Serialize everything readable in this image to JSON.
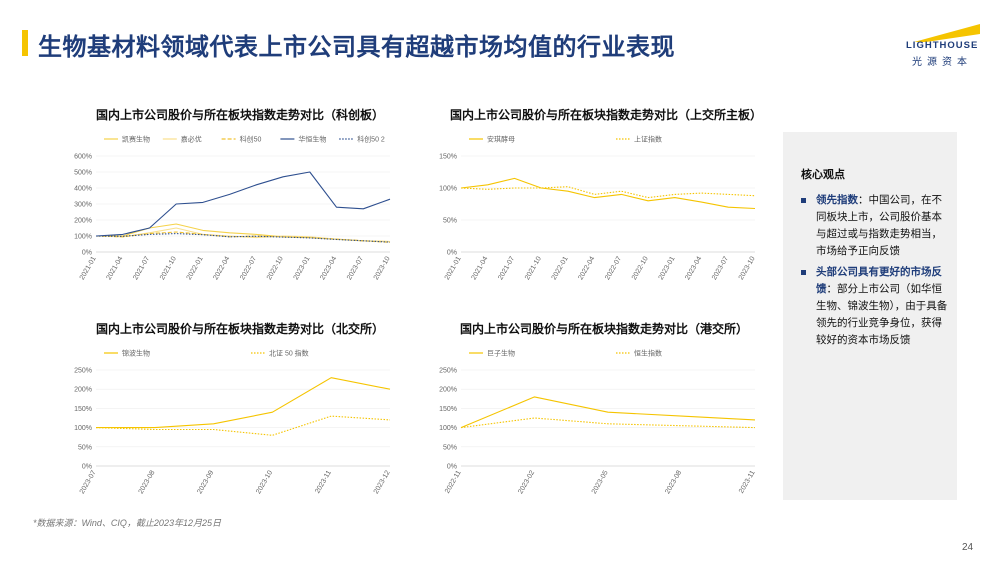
{
  "page": {
    "title": "生物基材料领域代表上市公司具有超越市场均值的行业表现",
    "logo_en": "LIGHTHOUSE",
    "logo_cn": "光源资本",
    "source": "*数据来源：Wind、CIQ，截止2023年12月25日",
    "page_number": "24",
    "accent": "#f5c400",
    "brand": "#1f3d7a"
  },
  "panel": {
    "title": "核心观点",
    "bullets": [
      {
        "highlight": "领先指数",
        "text": "：中国公司，在不同板块上市，公司股价基本与超过或与指数走势相当，市场给予正向反馈"
      },
      {
        "highlight": "头部公司具有更好的市场反馈",
        "text": "：部分上市公司（如华恒生物、锦波生物），由于具备领先的行业竞争身位，获得较好的资本市场反馈"
      }
    ]
  },
  "chart_data": [
    {
      "type": "line",
      "title": "国内上市公司股价与所在板块指数走势对比（科创板）",
      "x": [
        "2021-01",
        "2021-04",
        "2021-07",
        "2021-10",
        "2022-01",
        "2022-04",
        "2022-07",
        "2022-10",
        "2023-01",
        "2023-04",
        "2023-07",
        "2023-10"
      ],
      "ylim": [
        0,
        600
      ],
      "yticks": [
        "0%",
        "100%",
        "200%",
        "300%",
        "400%",
        "500%",
        "600%"
      ],
      "legend": "top",
      "series": [
        {
          "name": "凯赛生物",
          "color": "#f5d24a",
          "style": "solid",
          "values": [
            100,
            100,
            150,
            175,
            135,
            120,
            110,
            95,
            90,
            80,
            70,
            65
          ]
        },
        {
          "name": "嘉必优",
          "color": "#f9e08c",
          "style": "solid",
          "values": [
            100,
            95,
            120,
            150,
            110,
            100,
            90,
            100,
            95,
            80,
            70,
            65
          ]
        },
        {
          "name": "科创50",
          "color": "#f1c232",
          "style": "dashed",
          "values": [
            100,
            95,
            115,
            125,
            110,
            95,
            100,
            95,
            90,
            80,
            70,
            60
          ]
        },
        {
          "name": "华恒生物",
          "color": "#2e4f8f",
          "style": "solid",
          "values": [
            100,
            110,
            150,
            300,
            310,
            360,
            420,
            470,
            500,
            280,
            270,
            330
          ]
        },
        {
          "name": "科创50 2",
          "color": "#2e4f8f",
          "style": "dotted",
          "values": [
            100,
            98,
            110,
            115,
            108,
            95,
            98,
            93,
            88,
            78,
            70,
            62
          ]
        }
      ]
    },
    {
      "type": "line",
      "title": "国内上市公司股价与所在板块指数走势对比（上交所主板）",
      "x": [
        "2021-01",
        "2021-04",
        "2021-07",
        "2021-10",
        "2022-01",
        "2022-04",
        "2022-07",
        "2022-10",
        "2023-01",
        "2023-04",
        "2023-07",
        "2023-10"
      ],
      "ylim": [
        0,
        150
      ],
      "yticks": [
        "0%",
        "50%",
        "100%",
        "150%"
      ],
      "legend": "top",
      "series": [
        {
          "name": "安琪酵母",
          "color": "#f5c400",
          "style": "solid",
          "values": [
            100,
            105,
            115,
            100,
            95,
            85,
            90,
            80,
            85,
            78,
            70,
            68
          ]
        },
        {
          "name": "上证指数",
          "color": "#f5c400",
          "style": "dotted",
          "values": [
            100,
            98,
            100,
            100,
            102,
            90,
            95,
            85,
            90,
            92,
            90,
            88
          ]
        }
      ]
    },
    {
      "type": "line",
      "title": "国内上市公司股价与所在板块指数走势对比（北交所）",
      "x": [
        "2023-07",
        "2023-08",
        "2023-09",
        "2023-10",
        "2023-11",
        "2023-12"
      ],
      "ylim": [
        0,
        250
      ],
      "yticks": [
        "0%",
        "50%",
        "100%",
        "150%",
        "200%",
        "250%"
      ],
      "legend": "top",
      "series": [
        {
          "name": "锦波生物",
          "color": "#f5c400",
          "style": "solid",
          "values": [
            100,
            100,
            110,
            140,
            230,
            200
          ]
        },
        {
          "name": "北证 50 指数",
          "color": "#f5c400",
          "style": "dotted",
          "values": [
            100,
            95,
            95,
            80,
            130,
            120
          ]
        }
      ]
    },
    {
      "type": "line",
      "title": "国内上市公司股价与所在板块指数走势对比（港交所）",
      "x": [
        "2022-11",
        "2023-02",
        "2023-05",
        "2023-08",
        "2023-11"
      ],
      "ylim": [
        0,
        250
      ],
      "yticks": [
        "0%",
        "50%",
        "100%",
        "150%",
        "200%",
        "250%"
      ],
      "legend": "top",
      "series": [
        {
          "name": "巨子生物",
          "color": "#f5c400",
          "style": "solid",
          "values": [
            100,
            180,
            140,
            130,
            120
          ]
        },
        {
          "name": "恒生指数",
          "color": "#f5c400",
          "style": "dotted",
          "values": [
            100,
            125,
            110,
            105,
            100
          ]
        }
      ]
    }
  ]
}
